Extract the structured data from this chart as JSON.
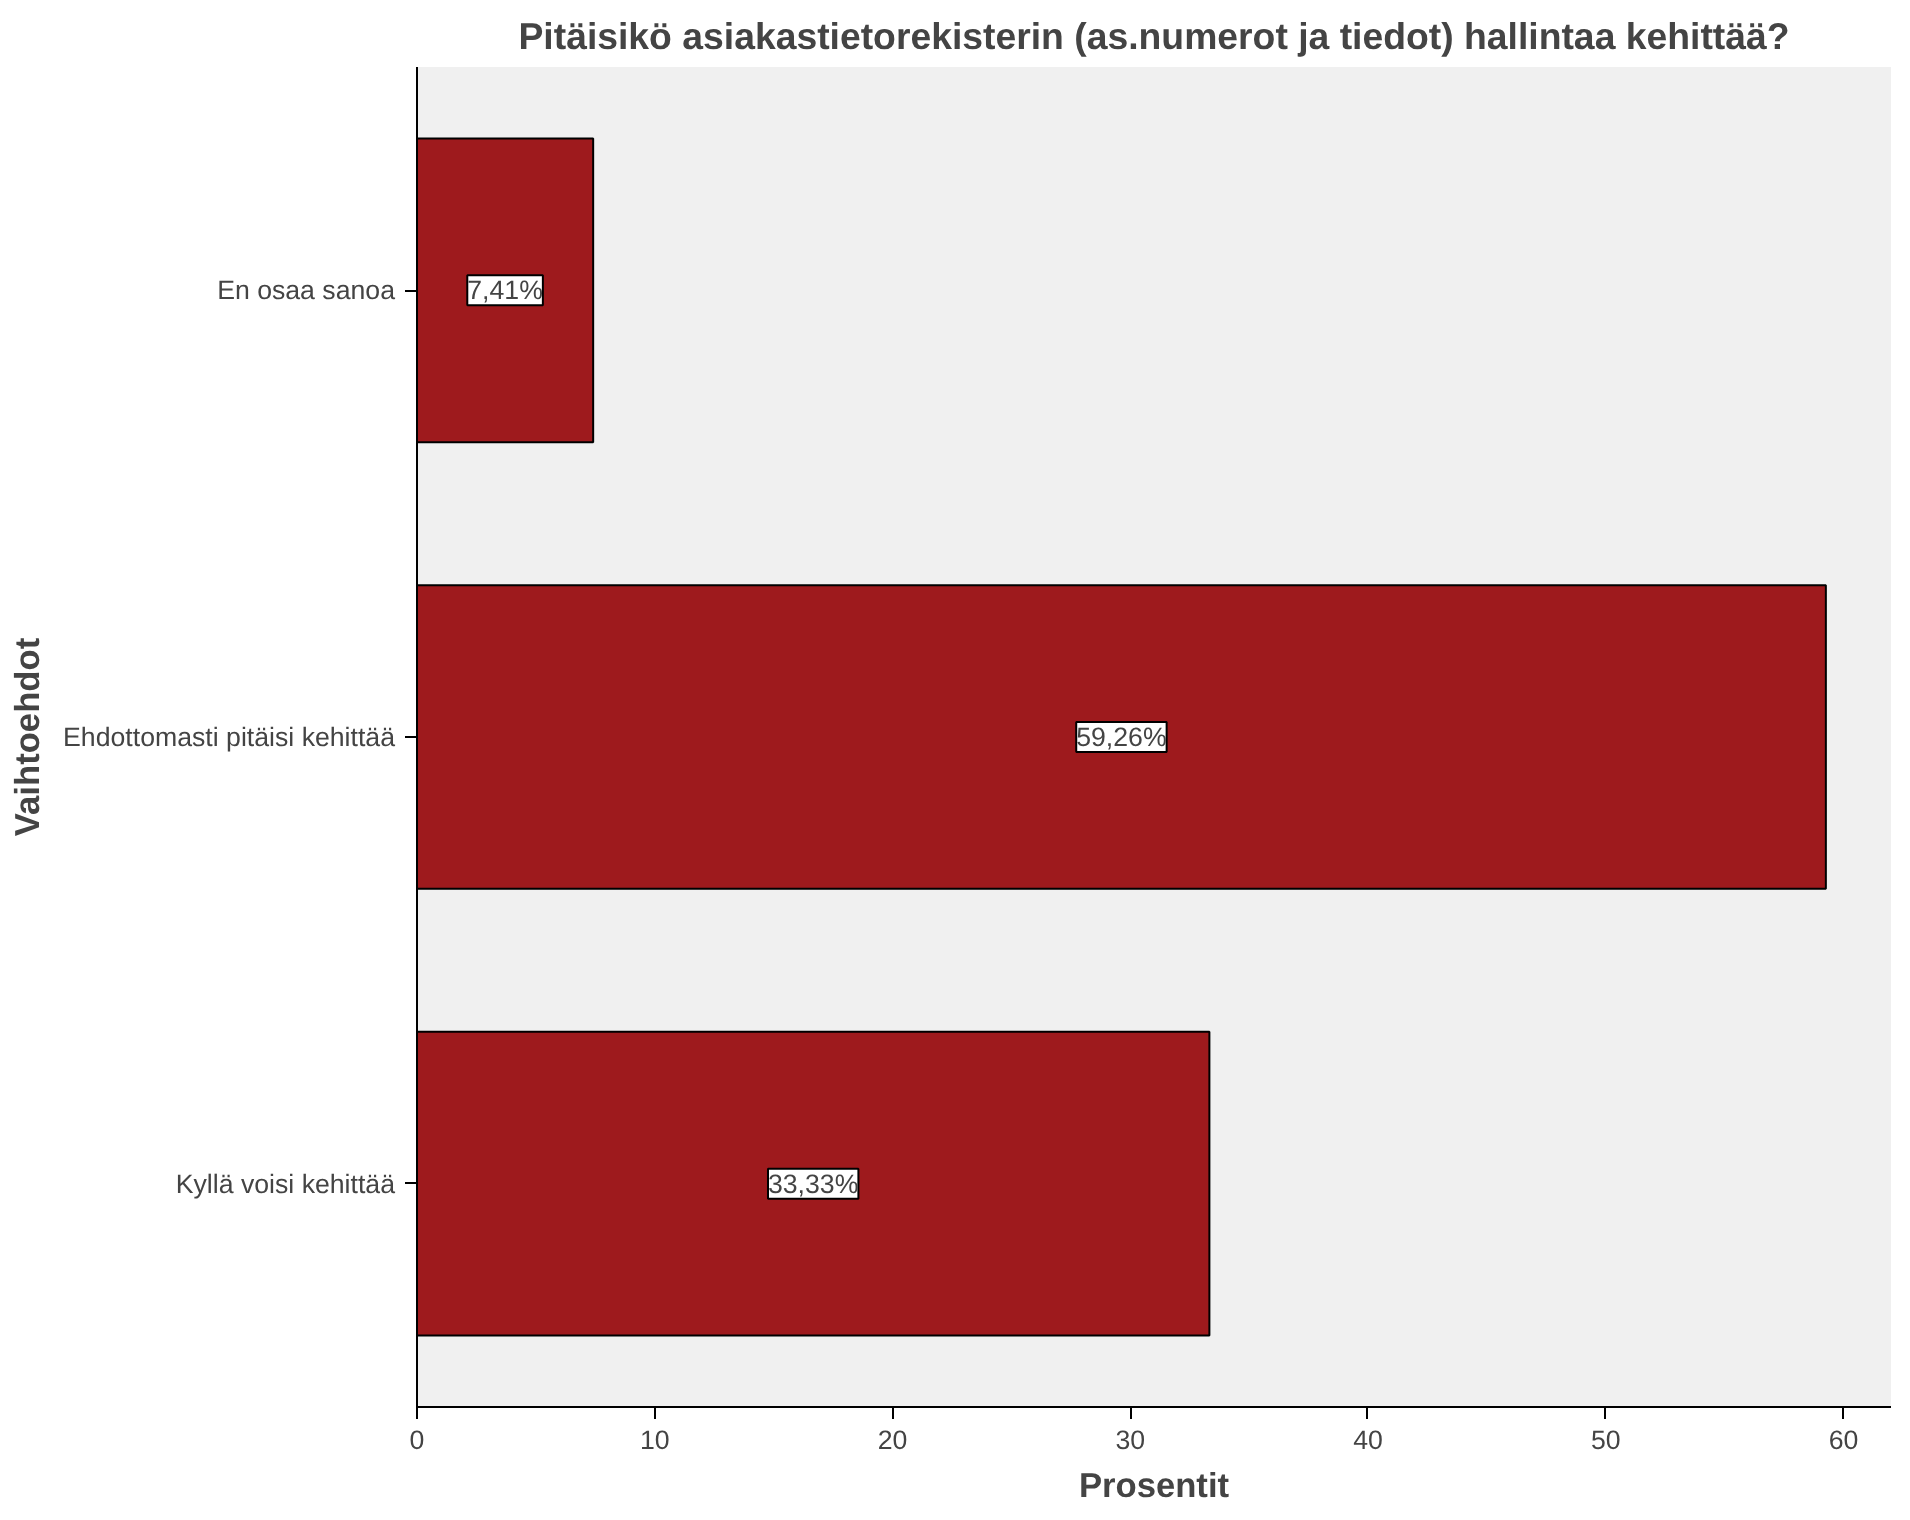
{
  "chart_data": {
    "type": "bar",
    "orientation": "horizontal",
    "title": "Pitäisikö asiakastietorekisterin (as.numerot ja tiedot) hallintaa kehittää?",
    "xlabel": "Prosentit",
    "ylabel": "Vaihtoehdot",
    "categories": [
      "En osaa sanoa",
      "Ehdottomasti pitäisi kehittää",
      "Kyllä voisi kehittää"
    ],
    "values": [
      7.41,
      59.26,
      33.33
    ],
    "value_labels": [
      "7,41%",
      "59,26%",
      "33,33%"
    ],
    "color": "#9e1a1d",
    "xlim": [
      0,
      62
    ],
    "xticks": [
      0,
      10,
      20,
      30,
      40,
      50,
      60
    ],
    "grid": false
  }
}
